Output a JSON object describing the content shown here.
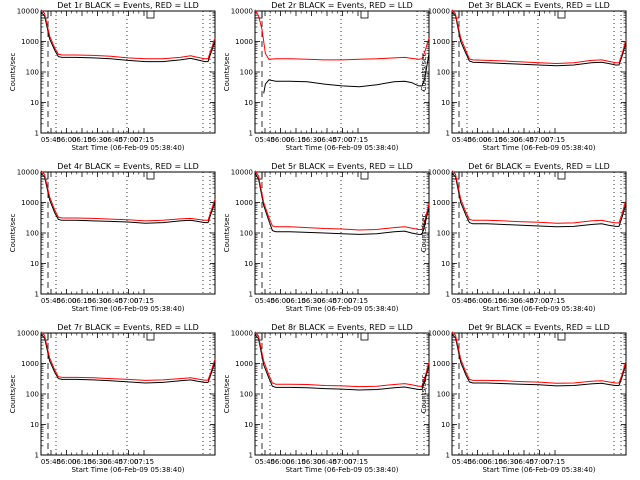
{
  "chart_data": [
    {
      "type": "line",
      "title": "Det 1r BLACK = Events, RED = LLD",
      "xlabel": "Start Time (06-Feb-09 05:38:40)",
      "ylabel": "Counts/sec",
      "yscale": "log",
      "ylim": [
        1,
        10000
      ],
      "xlim": [
        0,
        100
      ],
      "x_tick_labels": [
        "05:45",
        "06:00",
        "06:15",
        "06:30",
        "06:45",
        "07:00",
        "07:15"
      ],
      "y_tick_labels": [
        "1",
        "10",
        "100",
        "1000",
        "10000"
      ],
      "series": [
        {
          "name": "Events",
          "color": "#000000",
          "x": [
            0,
            2,
            5,
            8,
            10,
            12,
            20,
            30,
            40,
            50,
            60,
            70,
            80,
            86,
            90,
            94,
            96,
            97.5,
            100
          ],
          "y": [
            9000,
            7000,
            1200,
            500,
            320,
            300,
            300,
            290,
            270,
            240,
            220,
            220,
            250,
            280,
            250,
            220,
            220,
            400,
            1000
          ]
        },
        {
          "name": "LLD",
          "color": "#ff0000",
          "x": [
            0,
            2,
            5,
            8,
            10,
            12,
            20,
            30,
            40,
            50,
            60,
            70,
            80,
            86,
            90,
            94,
            96,
            97.5,
            100
          ],
          "y": [
            11000,
            8500,
            1500,
            600,
            380,
            360,
            360,
            350,
            330,
            290,
            270,
            270,
            300,
            340,
            300,
            270,
            270,
            500,
            1300
          ]
        }
      ]
    },
    {
      "type": "line",
      "title": "Det 2r BLACK = Events, RED = LLD",
      "xlabel": "Start Time (06-Feb-09 05:38:40)",
      "ylabel": "Counts/sec",
      "yscale": "log",
      "ylim": [
        1,
        10000
      ],
      "xlim": [
        0,
        100
      ],
      "x_tick_labels": [
        "05:45",
        "06:00",
        "06:15",
        "06:30",
        "06:45",
        "07:00",
        "07:15"
      ],
      "y_tick_labels": [
        "1",
        "10",
        "100",
        "1000",
        "10000"
      ],
      "series": [
        {
          "name": "Events",
          "color": "#000000",
          "x": [
            5,
            6,
            8,
            12,
            20,
            30,
            40,
            50,
            60,
            70,
            80,
            86,
            90,
            94,
            96,
            97.5,
            100
          ],
          "y": [
            20,
            40,
            55,
            50,
            50,
            48,
            40,
            35,
            33,
            38,
            48,
            50,
            45,
            35,
            35,
            60,
            400
          ]
        },
        {
          "name": "LLD",
          "color": "#ff0000",
          "x": [
            0,
            2,
            4,
            6,
            8,
            12,
            20,
            30,
            40,
            50,
            60,
            70,
            80,
            86,
            90,
            94,
            96,
            97.5,
            100
          ],
          "y": [
            11000,
            7000,
            2500,
            400,
            260,
            270,
            270,
            260,
            250,
            250,
            260,
            270,
            290,
            300,
            280,
            260,
            270,
            450,
            1300
          ]
        }
      ]
    },
    {
      "type": "line",
      "title": "Det 3r BLACK = Events, RED = LLD",
      "xlabel": "Start Time (06-Feb-09 05:38:40)",
      "ylabel": "Counts/sec",
      "yscale": "log",
      "ylim": [
        1,
        10000
      ],
      "xlim": [
        0,
        100
      ],
      "x_tick_labels": [
        "05:45",
        "06:00",
        "06:15",
        "06:30",
        "06:45",
        "07:00",
        "07:15"
      ],
      "y_tick_labels": [
        "1",
        "10",
        "100",
        "1000",
        "10000"
      ],
      "series": [
        {
          "name": "Events",
          "color": "#000000",
          "x": [
            0,
            2,
            5,
            8,
            10,
            12,
            20,
            30,
            40,
            50,
            60,
            70,
            80,
            86,
            90,
            94,
            96,
            97.5,
            100
          ],
          "y": [
            9000,
            7000,
            1000,
            400,
            230,
            210,
            200,
            190,
            180,
            170,
            160,
            170,
            200,
            210,
            190,
            170,
            170,
            300,
            900
          ]
        },
        {
          "name": "LLD",
          "color": "#ff0000",
          "x": [
            0,
            2,
            5,
            8,
            10,
            12,
            20,
            30,
            40,
            50,
            60,
            70,
            80,
            86,
            90,
            94,
            96,
            97.5,
            100
          ],
          "y": [
            11000,
            8000,
            1300,
            500,
            270,
            250,
            240,
            230,
            215,
            200,
            190,
            200,
            240,
            250,
            225,
            200,
            200,
            360,
            1100
          ]
        }
      ]
    },
    {
      "type": "line",
      "title": "Det 4r BLACK = Events, RED = LLD",
      "xlabel": "Start Time (06-Feb-09 05:38:40)",
      "ylabel": "Counts/sec",
      "yscale": "log",
      "ylim": [
        1,
        10000
      ],
      "xlim": [
        0,
        100
      ],
      "x_tick_labels": [
        "05:45",
        "06:00",
        "06:15",
        "06:30",
        "06:45",
        "07:00",
        "07:15"
      ],
      "y_tick_labels": [
        "1",
        "10",
        "100",
        "1000",
        "10000"
      ],
      "series": [
        {
          "name": "Events",
          "color": "#000000",
          "x": [
            0,
            2,
            5,
            8,
            10,
            12,
            20,
            30,
            40,
            50,
            60,
            70,
            80,
            86,
            90,
            94,
            96,
            97.5,
            100
          ],
          "y": [
            9000,
            7000,
            1200,
            450,
            280,
            260,
            260,
            250,
            240,
            230,
            210,
            220,
            250,
            260,
            240,
            220,
            220,
            400,
            1000
          ]
        },
        {
          "name": "LLD",
          "color": "#ff0000",
          "x": [
            0,
            2,
            5,
            8,
            10,
            12,
            20,
            30,
            40,
            50,
            60,
            70,
            80,
            86,
            90,
            94,
            96,
            97.5,
            100
          ],
          "y": [
            11000,
            8500,
            1500,
            550,
            330,
            310,
            310,
            300,
            285,
            270,
            250,
            260,
            290,
            300,
            280,
            260,
            260,
            480,
            1300
          ]
        }
      ]
    },
    {
      "type": "line",
      "title": "Det 5r BLACK = Events, RED = LLD",
      "xlabel": "Start Time (06-Feb-09 05:38:40)",
      "ylabel": "Counts/sec",
      "yscale": "log",
      "ylim": [
        1,
        10000
      ],
      "xlim": [
        0,
        100
      ],
      "x_tick_labels": [
        "05:45",
        "06:00",
        "06:15",
        "06:30",
        "06:45",
        "07:00",
        "07:15"
      ],
      "y_tick_labels": [
        "1",
        "10",
        "100",
        "1000",
        "10000"
      ],
      "series": [
        {
          "name": "Events",
          "color": "#000000",
          "x": [
            0,
            2,
            5,
            8,
            10,
            12,
            20,
            30,
            40,
            50,
            60,
            70,
            80,
            86,
            90,
            94,
            96,
            97.5,
            100
          ],
          "y": [
            9000,
            6000,
            800,
            250,
            120,
            110,
            110,
            105,
            100,
            95,
            90,
            95,
            110,
            115,
            100,
            90,
            90,
            180,
            700
          ]
        },
        {
          "name": "LLD",
          "color": "#ff0000",
          "x": [
            0,
            2,
            5,
            8,
            10,
            12,
            20,
            30,
            40,
            50,
            60,
            70,
            80,
            86,
            90,
            94,
            96,
            97.5,
            100
          ],
          "y": [
            11000,
            7500,
            1000,
            320,
            170,
            160,
            160,
            150,
            140,
            135,
            125,
            130,
            150,
            160,
            145,
            130,
            130,
            250,
            900
          ]
        }
      ]
    },
    {
      "type": "line",
      "title": "Det 6r BLACK = Events, RED = LLD",
      "xlabel": "Start Time (06-Feb-09 05:38:40)",
      "ylabel": "Counts/sec",
      "yscale": "log",
      "ylim": [
        1,
        10000
      ],
      "xlim": [
        0,
        100
      ],
      "x_tick_labels": [
        "05:45",
        "06:00",
        "06:15",
        "06:30",
        "06:45",
        "07:00",
        "07:15"
      ],
      "y_tick_labels": [
        "1",
        "10",
        "100",
        "1000",
        "10000"
      ],
      "series": [
        {
          "name": "Events",
          "color": "#000000",
          "x": [
            0,
            2,
            5,
            8,
            10,
            12,
            20,
            30,
            40,
            50,
            60,
            70,
            80,
            86,
            90,
            94,
            96,
            97.5,
            100
          ],
          "y": [
            9000,
            7000,
            1000,
            380,
            220,
            200,
            200,
            190,
            180,
            170,
            160,
            165,
            190,
            200,
            180,
            165,
            165,
            300,
            900
          ]
        },
        {
          "name": "LLD",
          "color": "#ff0000",
          "x": [
            0,
            2,
            5,
            8,
            10,
            12,
            20,
            30,
            40,
            50,
            60,
            70,
            80,
            86,
            90,
            94,
            96,
            97.5,
            100
          ],
          "y": [
            11000,
            8500,
            1300,
            480,
            280,
            260,
            260,
            250,
            235,
            225,
            210,
            215,
            250,
            260,
            235,
            215,
            215,
            400,
            1200
          ]
        }
      ]
    },
    {
      "type": "line",
      "title": "Det 7r BLACK = Events, RED = LLD",
      "xlabel": "Start Time (06-Feb-09 05:38:40)",
      "ylabel": "Counts/sec",
      "yscale": "log",
      "ylim": [
        1,
        10000
      ],
      "xlim": [
        0,
        100
      ],
      "x_tick_labels": [
        "05:45",
        "06:00",
        "06:15",
        "06:30",
        "06:45",
        "07:00",
        "07:15"
      ],
      "y_tick_labels": [
        "1",
        "10",
        "100",
        "1000",
        "10000"
      ],
      "series": [
        {
          "name": "Events",
          "color": "#000000",
          "x": [
            0,
            2,
            5,
            8,
            10,
            12,
            20,
            30,
            40,
            50,
            60,
            70,
            80,
            86,
            90,
            94,
            96,
            97.5,
            100
          ],
          "y": [
            9000,
            7000,
            1200,
            500,
            320,
            300,
            300,
            290,
            270,
            250,
            230,
            240,
            270,
            290,
            260,
            240,
            240,
            420,
            1100
          ]
        },
        {
          "name": "LLD",
          "color": "#ff0000",
          "x": [
            0,
            2,
            5,
            8,
            10,
            12,
            20,
            30,
            40,
            50,
            60,
            70,
            80,
            86,
            90,
            94,
            96,
            97.5,
            100
          ],
          "y": [
            11000,
            8500,
            1500,
            600,
            370,
            350,
            350,
            340,
            320,
            300,
            280,
            290,
            320,
            340,
            310,
            285,
            285,
            500,
            1400
          ]
        }
      ]
    },
    {
      "type": "line",
      "title": "Det 8r BLACK = Events, RED = LLD",
      "xlabel": "Start Time (06-Feb-09 05:38:40)",
      "ylabel": "Counts/sec",
      "yscale": "log",
      "ylim": [
        1,
        10000
      ],
      "xlim": [
        0,
        100
      ],
      "x_tick_labels": [
        "05:45",
        "06:00",
        "06:15",
        "06:30",
        "06:45",
        "07:00",
        "07:15"
      ],
      "y_tick_labels": [
        "1",
        "10",
        "100",
        "1000",
        "10000"
      ],
      "series": [
        {
          "name": "Events",
          "color": "#000000",
          "x": [
            0,
            2,
            5,
            8,
            10,
            12,
            20,
            30,
            40,
            50,
            60,
            70,
            80,
            86,
            90,
            94,
            96,
            97.5,
            100
          ],
          "y": [
            9000,
            6500,
            900,
            330,
            180,
            165,
            165,
            160,
            150,
            145,
            135,
            140,
            160,
            170,
            155,
            140,
            140,
            260,
            900
          ]
        },
        {
          "name": "LLD",
          "color": "#ff0000",
          "x": [
            0,
            2,
            5,
            8,
            10,
            12,
            20,
            30,
            40,
            50,
            60,
            70,
            80,
            86,
            90,
            94,
            96,
            97.5,
            100
          ],
          "y": [
            11000,
            8000,
            1200,
            420,
            230,
            210,
            210,
            205,
            190,
            185,
            175,
            180,
            205,
            220,
            200,
            180,
            180,
            330,
            1100
          ]
        }
      ]
    },
    {
      "type": "line",
      "title": "Det 9r BLACK = Events, RED = LLD",
      "xlabel": "Start Time (06-Feb-09 05:38:40)",
      "ylabel": "Counts/sec",
      "yscale": "log",
      "ylim": [
        1,
        10000
      ],
      "xlim": [
        0,
        100
      ],
      "x_tick_labels": [
        "05:45",
        "06:00",
        "06:15",
        "06:30",
        "06:45",
        "07:00",
        "07:15"
      ],
      "y_tick_labels": [
        "1",
        "10",
        "100",
        "1000",
        "10000"
      ],
      "series": [
        {
          "name": "Events",
          "color": "#000000",
          "x": [
            0,
            2,
            5,
            8,
            10,
            12,
            20,
            30,
            40,
            50,
            60,
            70,
            80,
            86,
            90,
            94,
            96,
            97.5,
            100
          ],
          "y": [
            9000,
            7000,
            1100,
            420,
            250,
            230,
            230,
            220,
            210,
            200,
            185,
            190,
            215,
            225,
            205,
            190,
            190,
            330,
            1000
          ]
        },
        {
          "name": "LLD",
          "color": "#ff0000",
          "x": [
            0,
            2,
            5,
            8,
            10,
            12,
            20,
            30,
            40,
            50,
            60,
            70,
            80,
            86,
            90,
            94,
            96,
            97.5,
            100
          ],
          "y": [
            11000,
            8500,
            1400,
            520,
            300,
            280,
            280,
            270,
            255,
            245,
            225,
            230,
            260,
            270,
            250,
            230,
            230,
            400,
            1200
          ]
        }
      ]
    }
  ]
}
